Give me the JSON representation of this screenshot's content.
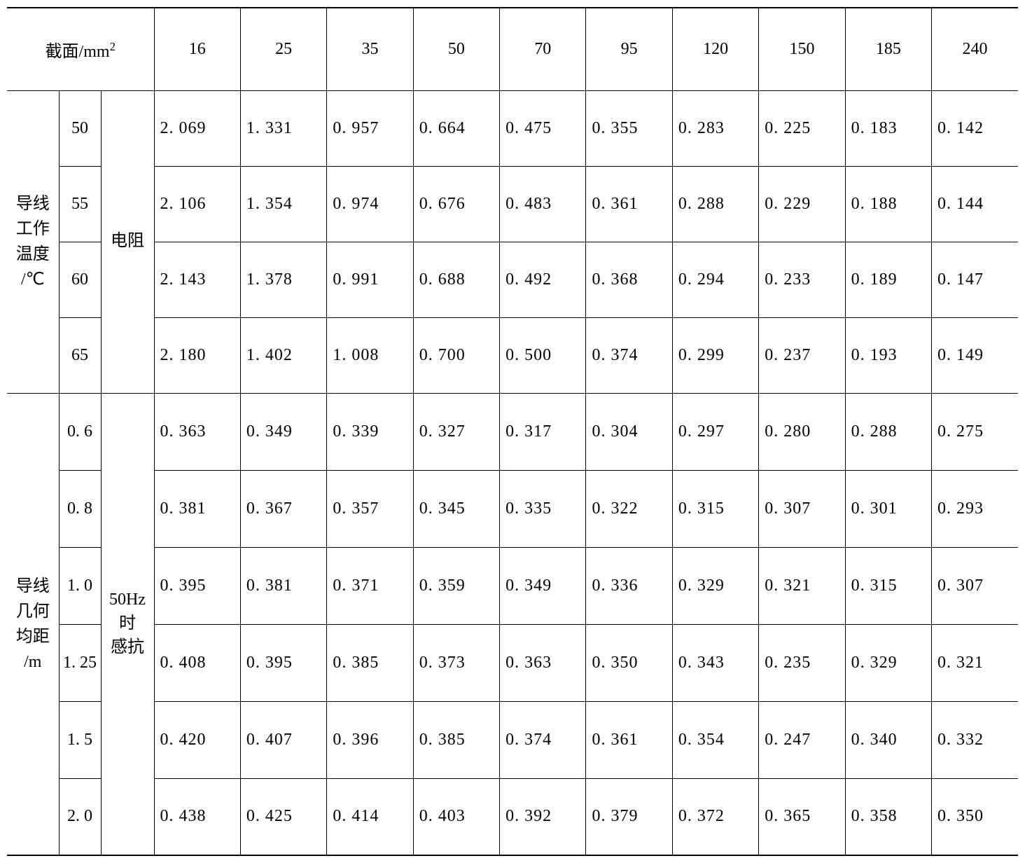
{
  "table": {
    "background_color": "#ffffff",
    "border_color": "#000000",
    "text_color": "#000000",
    "font_family": "SimSun",
    "font_size_pt": 18,
    "header": {
      "area_label": "截面/mm",
      "area_sup": "2",
      "columns": [
        "16",
        "25",
        "35",
        "50",
        "70",
        "95",
        "120",
        "150",
        "185",
        "240"
      ]
    },
    "section1": {
      "label_l1": "导线",
      "label_l2": "工作",
      "label_l3": "温度",
      "label_unit": "/℃",
      "property": "电阻",
      "params": [
        "50",
        "55",
        "60",
        "65"
      ],
      "rows": [
        [
          "2. 069",
          "1. 331",
          "0. 957",
          "0. 664",
          "0. 475",
          "0. 355",
          "0. 283",
          "0. 225",
          "0. 183",
          "0. 142"
        ],
        [
          "2. 106",
          "1. 354",
          "0. 974",
          "0. 676",
          "0. 483",
          "0. 361",
          "0. 288",
          "0. 229",
          "0. 188",
          "0. 144"
        ],
        [
          "2. 143",
          "1. 378",
          "0. 991",
          "0. 688",
          "0. 492",
          "0. 368",
          "0. 294",
          "0. 233",
          "0. 189",
          "0. 147"
        ],
        [
          "2. 180",
          "1. 402",
          "1. 008",
          "0. 700",
          "0. 500",
          "0. 374",
          "0. 299",
          "0. 237",
          "0. 193",
          "0. 149"
        ]
      ]
    },
    "section2": {
      "label_l1": "导线",
      "label_l2": "几何",
      "label_l3": "均距",
      "label_unit": "/m",
      "property_l1": "50Hz",
      "property_l2": "时",
      "property_l3": "感抗",
      "params": [
        "0. 6",
        "0. 8",
        "1. 0",
        "1. 25",
        "1. 5",
        "2. 0"
      ],
      "rows": [
        [
          "0. 363",
          "0. 349",
          "0. 339",
          "0. 327",
          "0. 317",
          "0. 304",
          "0. 297",
          "0. 280",
          "0. 288",
          "0. 275"
        ],
        [
          "0. 381",
          "0. 367",
          "0. 357",
          "0. 345",
          "0. 335",
          "0. 322",
          "0. 315",
          "0. 307",
          "0. 301",
          "0. 293"
        ],
        [
          "0. 395",
          "0. 381",
          "0. 371",
          "0. 359",
          "0. 349",
          "0. 336",
          "0. 329",
          "0. 321",
          "0. 315",
          "0. 307"
        ],
        [
          "0. 408",
          "0. 395",
          "0. 385",
          "0. 373",
          "0. 363",
          "0. 350",
          "0. 343",
          "0. 235",
          "0. 329",
          "0. 321"
        ],
        [
          "0. 420",
          "0. 407",
          "0. 396",
          "0. 385",
          "0. 374",
          "0. 361",
          "0. 354",
          "0. 247",
          "0. 340",
          "0. 332"
        ],
        [
          "0. 438",
          "0. 425",
          "0. 414",
          "0. 403",
          "0. 392",
          "0. 379",
          "0. 372",
          "0. 365",
          "0. 358",
          "0. 350"
        ]
      ]
    }
  }
}
